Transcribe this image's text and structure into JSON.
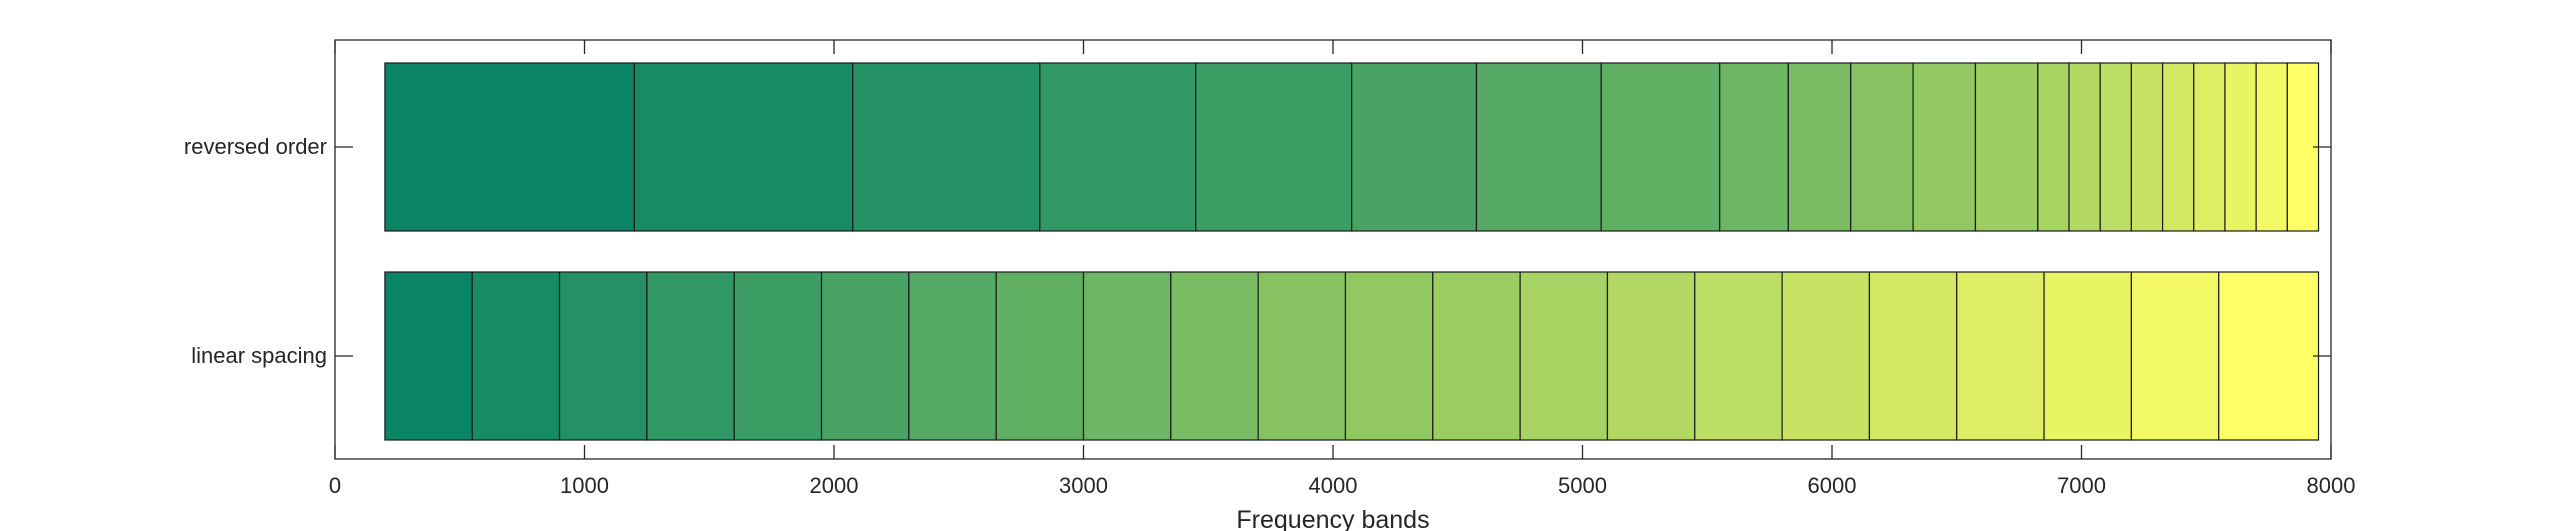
{
  "chart_data": {
    "type": "bar",
    "orientation": "horizontal-stacked",
    "categories": [
      "reversed order",
      "linear spacing"
    ],
    "series": [
      {
        "edges": [
          200,
          1200,
          2075,
          2825,
          3450,
          4075,
          4575,
          5075,
          5550,
          5825,
          6075,
          6325,
          6575,
          6825,
          6950,
          7075,
          7200,
          7325,
          7450,
          7575,
          7700,
          7825,
          7950
        ]
      },
      {
        "edges": [
          200,
          550,
          900,
          1250,
          1600,
          1950,
          2300,
          2650,
          3000,
          3350,
          3700,
          4050,
          4400,
          4750,
          5100,
          5450,
          5800,
          6150,
          6500,
          6850,
          7200,
          7550,
          7950
        ]
      }
    ],
    "xlabel": "Frequency bands",
    "xlim": [
      0,
      8000
    ],
    "xticks": [
      0,
      1000,
      2000,
      3000,
      4000,
      5000,
      6000,
      7000,
      8000
    ],
    "grid": false,
    "colormap": {
      "start": "#0b8466",
      "mid": "#8cc562",
      "end": "#ffff66"
    }
  }
}
